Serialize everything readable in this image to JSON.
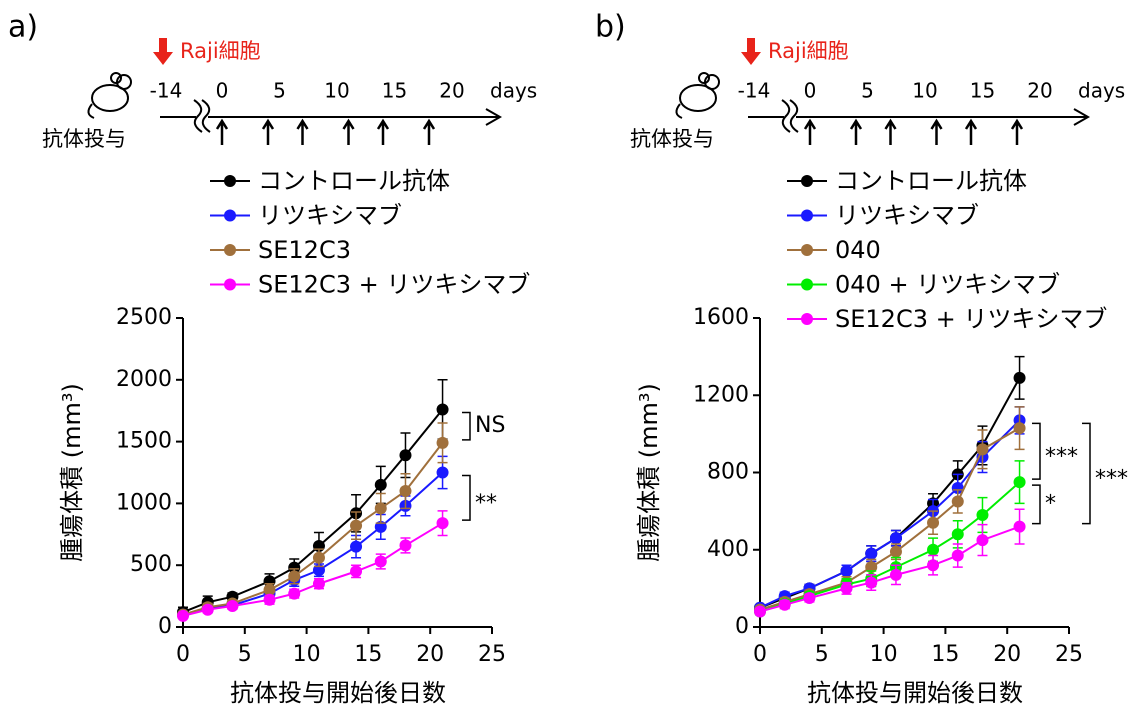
{
  "chart_data": [
    {
      "type": "line",
      "panel": "a)",
      "schedule": {
        "injection_label": "Raji細胞",
        "ticks": [
          -14,
          0,
          5,
          10,
          15,
          20
        ],
        "unit": "days",
        "treatment_label": "抗体投与",
        "dose_days": [
          0,
          4,
          7,
          11,
          14,
          18
        ]
      },
      "x_label": "抗体投与開始後日数",
      "y_label": "腫瘍体積 (mm³)",
      "x": [
        0,
        2,
        4,
        7,
        9,
        11,
        14,
        16,
        18,
        21
      ],
      "xlim": [
        0,
        25
      ],
      "xticks": [
        0,
        5,
        10,
        15,
        20,
        25
      ],
      "ylim": [
        0,
        2500
      ],
      "yticks": [
        0,
        500,
        1000,
        1500,
        2000,
        2500
      ],
      "series": [
        {
          "name": "コントロール抗体",
          "color": "#000000",
          "values": [
            120,
            200,
            245,
            370,
            480,
            655,
            920,
            1150,
            1390,
            1760
          ],
          "errors": [
            40,
            50,
            30,
            60,
            70,
            110,
            150,
            150,
            180,
            240
          ]
        },
        {
          "name": "リツキシマブ",
          "color": "#1a1aff",
          "values": [
            100,
            150,
            175,
            270,
            380,
            460,
            650,
            810,
            980,
            1250
          ],
          "errors": [
            20,
            30,
            25,
            40,
            50,
            50,
            90,
            100,
            80,
            130
          ]
        },
        {
          "name": "SE12C3",
          "color": "#a0703c",
          "values": [
            100,
            160,
            190,
            300,
            410,
            560,
            820,
            960,
            1100,
            1490
          ],
          "errors": [
            20,
            30,
            25,
            50,
            60,
            70,
            110,
            120,
            140,
            160
          ]
        },
        {
          "name": "SE12C3 + リツキシマブ",
          "color": "#ff00ff",
          "values": [
            90,
            140,
            170,
            220,
            270,
            350,
            450,
            530,
            660,
            840
          ],
          "errors": [
            20,
            25,
            25,
            35,
            35,
            40,
            50,
            60,
            60,
            100
          ]
        }
      ],
      "annotations": [
        "NS",
        "**"
      ]
    },
    {
      "type": "line",
      "panel": "b)",
      "schedule": {
        "injection_label": "Raji細胞",
        "ticks": [
          -14,
          0,
          5,
          10,
          15,
          20
        ],
        "unit": "days",
        "treatment_label": "抗体投与",
        "dose_days": [
          0,
          4,
          7,
          11,
          14,
          18
        ]
      },
      "x_label": "抗体投与開始後日数",
      "y_label": "腫瘍体積 (mm³)",
      "x": [
        0,
        2,
        4,
        7,
        9,
        11,
        14,
        16,
        18,
        21
      ],
      "xlim": [
        0,
        25
      ],
      "xticks": [
        0,
        5,
        10,
        15,
        20,
        25
      ],
      "ylim": [
        0,
        1600
      ],
      "yticks": [
        0,
        400,
        800,
        1200,
        1600
      ],
      "series": [
        {
          "name": "コントロール抗体",
          "color": "#000000",
          "values": [
            100,
            150,
            200,
            290,
            380,
            460,
            640,
            790,
            940,
            1290
          ],
          "errors": [
            15,
            20,
            20,
            30,
            40,
            40,
            50,
            70,
            100,
            110
          ]
        },
        {
          "name": "リツキシマブ",
          "color": "#1a1aff",
          "values": [
            100,
            160,
            200,
            290,
            380,
            460,
            600,
            720,
            880,
            1070
          ],
          "errors": [
            15,
            20,
            20,
            30,
            40,
            40,
            60,
            70,
            80,
            70
          ]
        },
        {
          "name": "040",
          "color": "#a0703c",
          "values": [
            90,
            130,
            170,
            230,
            310,
            390,
            540,
            650,
            920,
            1030
          ],
          "errors": [
            15,
            20,
            20,
            30,
            40,
            40,
            60,
            60,
            100,
            110
          ]
        },
        {
          "name": "040 + リツキシマブ",
          "color": "#00ee00",
          "values": [
            80,
            120,
            160,
            220,
            250,
            310,
            400,
            480,
            580,
            750
          ],
          "errors": [
            15,
            20,
            20,
            30,
            40,
            50,
            60,
            70,
            90,
            110
          ]
        },
        {
          "name": "SE12C3 + リツキシマブ",
          "color": "#ff00ff",
          "values": [
            80,
            115,
            150,
            200,
            230,
            270,
            320,
            370,
            450,
            520
          ],
          "errors": [
            15,
            20,
            20,
            30,
            40,
            50,
            50,
            60,
            80,
            90
          ]
        }
      ],
      "annotations": [
        "***",
        "*",
        "***"
      ]
    }
  ]
}
